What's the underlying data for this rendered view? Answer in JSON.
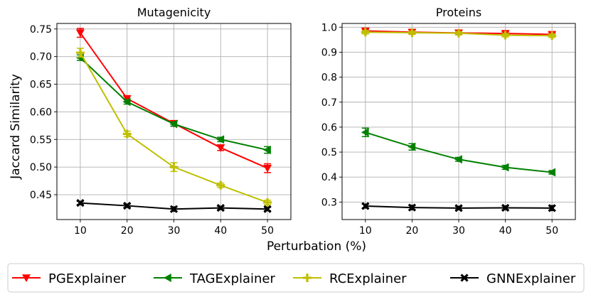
{
  "figure": {
    "xlabel": "Perturbation (%)",
    "ylabel": "Jaccard Similarity"
  },
  "legend": {
    "placement": "bottom",
    "entries": [
      {
        "name": "PGExplainer",
        "color": "#ff0000",
        "marker": "triangle-down"
      },
      {
        "name": "TAGExplainer",
        "color": "#008000",
        "marker": "triangle-left"
      },
      {
        "name": "RCExplainer",
        "color": "#bfbf00",
        "marker": "plus"
      },
      {
        "name": "GNNExplainer",
        "color": "#000000",
        "marker": "x"
      }
    ]
  },
  "chart_data": [
    {
      "type": "line",
      "title": "Mutagenicity",
      "xlabel": "",
      "ylabel": "Jaccard Similarity",
      "x": [
        10,
        20,
        30,
        40,
        50
      ],
      "xlim": [
        5,
        55
      ],
      "ylim": [
        0.405,
        0.76
      ],
      "yticks": [
        0.45,
        0.5,
        0.55,
        0.6,
        0.65,
        0.7,
        0.75
      ],
      "ytick_labels": [
        "0.45",
        "0.50",
        "0.55",
        "0.60",
        "0.65",
        "0.70",
        "0.75"
      ],
      "grid": true,
      "series": [
        {
          "name": "PGExplainer",
          "values": [
            0.743,
            0.624,
            0.579,
            0.535,
            0.498
          ],
          "errors": [
            0.008,
            0.005,
            0.005,
            0.005,
            0.008
          ]
        },
        {
          "name": "TAGExplainer",
          "values": [
            0.698,
            0.618,
            0.578,
            0.55,
            0.531
          ],
          "errors": [
            0.005,
            0.004,
            0.004,
            0.004,
            0.006
          ]
        },
        {
          "name": "RCExplainer",
          "values": [
            0.707,
            0.56,
            0.5,
            0.467,
            0.436
          ],
          "errors": [
            0.008,
            0.005,
            0.008,
            0.004,
            0.004
          ]
        },
        {
          "name": "GNNExplainer",
          "values": [
            0.435,
            0.43,
            0.424,
            0.426,
            0.424
          ],
          "errors": [
            0.003,
            0.003,
            0.004,
            0.003,
            0.003
          ]
        }
      ]
    },
    {
      "type": "line",
      "title": "Proteins",
      "xlabel": "",
      "ylabel": "",
      "x": [
        10,
        20,
        30,
        40,
        50
      ],
      "xlim": [
        5,
        55
      ],
      "ylim": [
        0.23,
        1.015
      ],
      "yticks": [
        0.3,
        0.4,
        0.5,
        0.6,
        0.7,
        0.8,
        0.9,
        1.0
      ],
      "ytick_labels": [
        "0.3",
        "0.4",
        "0.5",
        "0.6",
        "0.7",
        "0.8",
        "0.9",
        "1.0"
      ],
      "grid": true,
      "series": [
        {
          "name": "PGExplainer",
          "values": [
            0.985,
            0.98,
            0.977,
            0.975,
            0.971
          ],
          "errors": [
            0.006,
            0.006,
            0.005,
            0.006,
            0.006
          ]
        },
        {
          "name": "TAGExplainer",
          "values": [
            0.579,
            0.521,
            0.471,
            0.439,
            0.419
          ],
          "errors": [
            0.017,
            0.013,
            0.008,
            0.008,
            0.007
          ]
        },
        {
          "name": "RCExplainer",
          "values": [
            0.98,
            0.978,
            0.976,
            0.968,
            0.966
          ],
          "errors": [
            0.007,
            0.007,
            0.007,
            0.007,
            0.007
          ]
        },
        {
          "name": "GNNExplainer",
          "values": [
            0.284,
            0.278,
            0.276,
            0.277,
            0.276
          ],
          "errors": [
            0.008,
            0.009,
            0.007,
            0.008,
            0.01
          ]
        }
      ]
    }
  ]
}
